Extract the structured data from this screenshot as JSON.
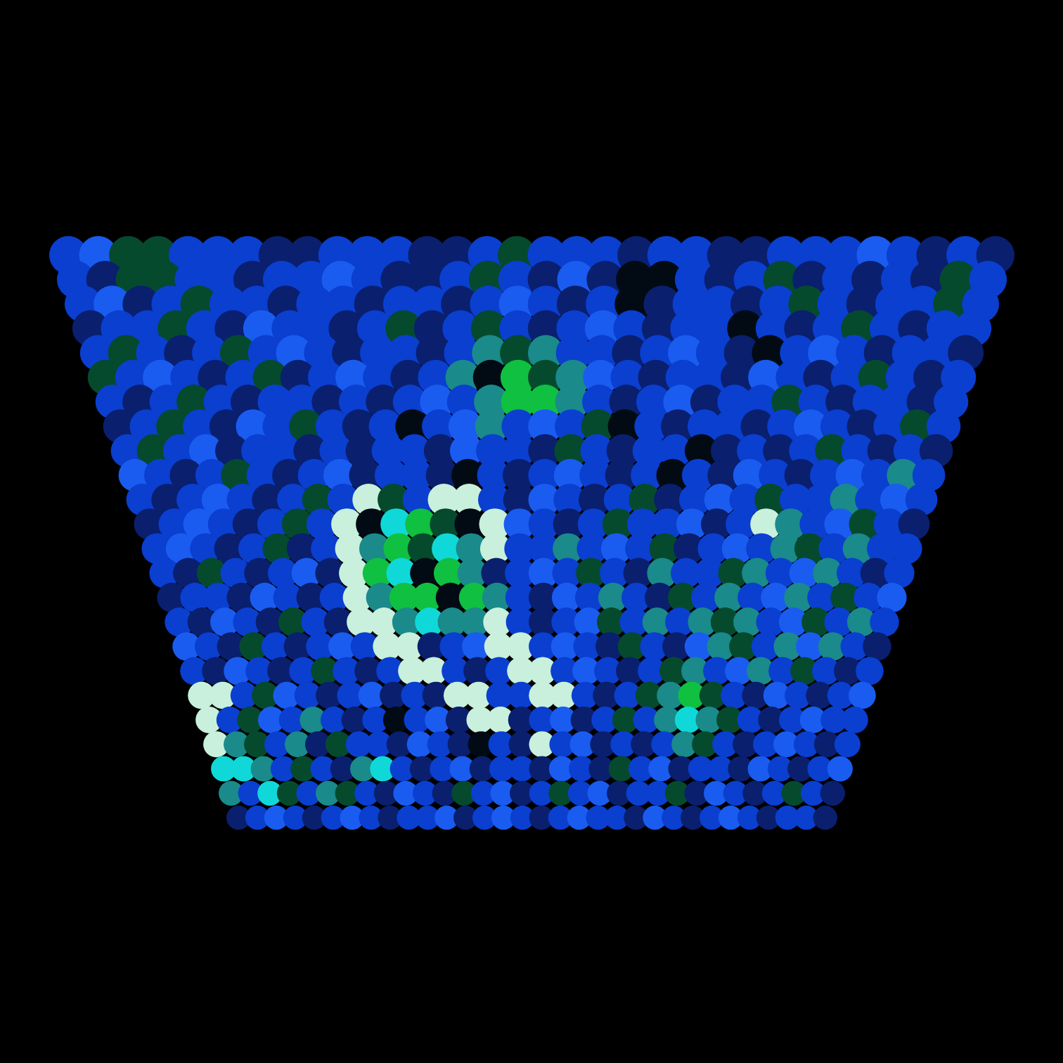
{
  "chart_data": {
    "type": "heatmap",
    "tick_labels": false,
    "color_values": [
      0,
      1,
      2,
      3,
      4,
      5,
      6,
      7,
      8
    ],
    "colors": [
      "#020a14",
      "#0a1f6e",
      "#0a3fd0",
      "#1a5cf0",
      "#064a2e",
      "#1a8a8a",
      "#10c040",
      "#10d8d8",
      "#c8f0dc"
    ],
    "cells": [
      [
        1,
        2,
        3,
        2,
        1,
        2,
        3,
        2,
        1,
        2,
        2,
        3,
        1,
        2,
        3,
        2,
        1,
        2,
        3,
        2,
        2,
        1,
        3,
        2,
        1,
        2,
        3,
        2,
        1,
        2,
        2,
        1
      ],
      [
        5,
        2,
        7,
        4,
        2,
        5,
        4,
        2,
        1,
        3,
        2,
        1,
        4,
        2,
        3,
        1,
        2,
        4,
        2,
        3,
        1,
        2,
        2,
        4,
        1,
        3,
        2,
        1,
        2,
        4,
        2,
        1
      ],
      [
        7,
        7,
        5,
        2,
        4,
        2,
        1,
        5,
        7,
        2,
        1,
        2,
        3,
        1,
        2,
        2,
        1,
        3,
        2,
        1,
        4,
        2,
        3,
        1,
        2,
        2,
        1,
        3,
        2,
        1,
        2,
        3
      ],
      [
        8,
        5,
        4,
        2,
        5,
        1,
        4,
        2,
        2,
        1,
        3,
        2,
        1,
        0,
        2,
        1,
        8,
        2,
        3,
        1,
        2,
        1,
        2,
        5,
        4,
        2,
        1,
        2,
        3,
        2,
        1,
        2
      ],
      [
        8,
        2,
        4,
        3,
        2,
        5,
        2,
        1,
        2,
        0,
        2,
        3,
        1,
        8,
        8,
        1,
        2,
        3,
        1,
        2,
        4,
        2,
        5,
        7,
        5,
        4,
        2,
        1,
        2,
        3,
        2,
        2
      ],
      [
        8,
        8,
        2,
        4,
        3,
        2,
        1,
        2,
        3,
        1,
        2,
        1,
        8,
        8,
        2,
        2,
        8,
        8,
        2,
        1,
        2,
        4,
        5,
        6,
        4,
        2,
        1,
        3,
        2,
        1,
        2,
        3
      ],
      [
        2,
        1,
        3,
        2,
        1,
        2,
        4,
        2,
        1,
        2,
        8,
        8,
        2,
        1,
        2,
        8,
        8,
        2,
        3,
        2,
        1,
        2,
        4,
        5,
        2,
        3,
        5,
        2,
        4,
        2,
        1,
        2
      ],
      [
        3,
        2,
        1,
        4,
        2,
        1,
        2,
        3,
        2,
        8,
        8,
        1,
        2,
        3,
        8,
        8,
        2,
        3,
        2,
        1,
        4,
        2,
        1,
        3,
        5,
        4,
        2,
        5,
        3,
        5,
        2,
        1
      ],
      [
        2,
        1,
        3,
        2,
        1,
        4,
        2,
        1,
        8,
        8,
        5,
        7,
        5,
        5,
        8,
        2,
        1,
        2,
        3,
        4,
        2,
        5,
        2,
        5,
        4,
        5,
        2,
        3,
        4,
        2,
        5,
        2
      ],
      [
        1,
        2,
        2,
        1,
        3,
        2,
        1,
        2,
        8,
        5,
        6,
        6,
        0,
        6,
        5,
        2,
        1,
        3,
        2,
        5,
        2,
        1,
        4,
        2,
        5,
        2,
        3,
        5,
        2,
        4,
        2,
        3
      ],
      [
        2,
        1,
        4,
        2,
        1,
        2,
        3,
        1,
        8,
        6,
        7,
        0,
        6,
        5,
        1,
        2,
        3,
        2,
        4,
        2,
        1,
        5,
        2,
        2,
        4,
        5,
        2,
        3,
        5,
        2,
        1,
        2
      ],
      [
        2,
        3,
        2,
        1,
        2,
        4,
        1,
        2,
        8,
        5,
        6,
        4,
        7,
        5,
        8,
        2,
        2,
        5,
        2,
        3,
        2,
        4,
        1,
        2,
        3,
        2,
        5,
        4,
        2,
        5,
        2,
        2
      ],
      [
        1,
        2,
        3,
        2,
        1,
        2,
        4,
        2,
        8,
        0,
        7,
        6,
        4,
        0,
        8,
        3,
        2,
        1,
        2,
        4,
        2,
        2,
        3,
        1,
        2,
        8,
        5,
        2,
        3,
        4,
        2,
        1
      ],
      [
        2,
        1,
        2,
        3,
        2,
        1,
        2,
        4,
        2,
        8,
        4,
        2,
        8,
        8,
        2,
        1,
        3,
        2,
        1,
        2,
        4,
        1,
        2,
        3,
        2,
        4,
        2,
        2,
        5,
        2,
        3,
        2
      ],
      [
        3,
        2,
        1,
        2,
        4,
        2,
        1,
        2,
        3,
        1,
        2,
        2,
        1,
        0,
        2,
        1,
        2,
        3,
        2,
        1,
        2,
        0,
        2,
        1,
        3,
        2,
        1,
        2,
        3,
        2,
        5,
        2
      ],
      [
        2,
        4,
        2,
        3,
        1,
        2,
        2,
        1,
        2,
        1,
        2,
        2,
        1,
        3,
        2,
        2,
        1,
        4,
        2,
        1,
        2,
        2,
        0,
        1,
        2,
        1,
        2,
        4,
        2,
        1,
        2,
        1
      ],
      [
        1,
        2,
        4,
        2,
        1,
        3,
        2,
        4,
        2,
        1,
        2,
        0,
        2,
        3,
        5,
        2,
        3,
        2,
        4,
        0,
        2,
        1,
        2,
        2,
        1,
        2,
        3,
        2,
        1,
        2,
        4,
        2
      ],
      [
        2,
        1,
        2,
        4,
        2,
        1,
        2,
        2,
        1,
        2,
        1,
        2,
        3,
        2,
        5,
        6,
        6,
        5,
        2,
        1,
        2,
        3,
        1,
        2,
        2,
        4,
        2,
        1,
        2,
        2,
        1,
        2
      ],
      [
        4,
        2,
        3,
        2,
        1,
        2,
        4,
        1,
        2,
        3,
        2,
        1,
        2,
        5,
        0,
        6,
        4,
        5,
        3,
        2,
        1,
        2,
        2,
        1,
        3,
        2,
        1,
        2,
        4,
        2,
        1,
        2
      ],
      [
        2,
        4,
        2,
        1,
        2,
        4,
        2,
        3,
        2,
        1,
        2,
        2,
        1,
        2,
        5,
        4,
        5,
        2,
        2,
        1,
        2,
        3,
        2,
        1,
        0,
        2,
        3,
        2,
        1,
        2,
        2,
        1
      ],
      [
        1,
        2,
        2,
        4,
        2,
        1,
        3,
        2,
        2,
        1,
        2,
        4,
        1,
        2,
        4,
        2,
        1,
        2,
        3,
        2,
        1,
        2,
        2,
        0,
        2,
        1,
        2,
        4,
        2,
        1,
        2,
        2
      ],
      [
        2,
        3,
        1,
        2,
        4,
        2,
        2,
        1,
        2,
        2,
        1,
        2,
        2,
        1,
        2,
        3,
        2,
        1,
        2,
        0,
        1,
        2,
        2,
        1,
        2,
        4,
        2,
        1,
        2,
        2,
        4,
        2
      ],
      [
        2,
        1,
        4,
        4,
        2,
        2,
        1,
        2,
        2,
        3,
        2,
        1,
        1,
        2,
        4,
        2,
        1,
        3,
        1,
        0,
        0,
        2,
        1,
        2,
        4,
        1,
        2,
        1,
        2,
        1,
        4,
        2
      ],
      [
        2,
        3,
        4,
        4,
        2,
        2,
        2,
        1,
        1,
        2,
        2,
        2,
        1,
        1,
        2,
        4,
        2,
        2,
        2,
        1,
        2,
        2,
        1,
        1,
        2,
        2,
        2,
        3,
        2,
        1,
        2,
        1
      ]
    ]
  }
}
